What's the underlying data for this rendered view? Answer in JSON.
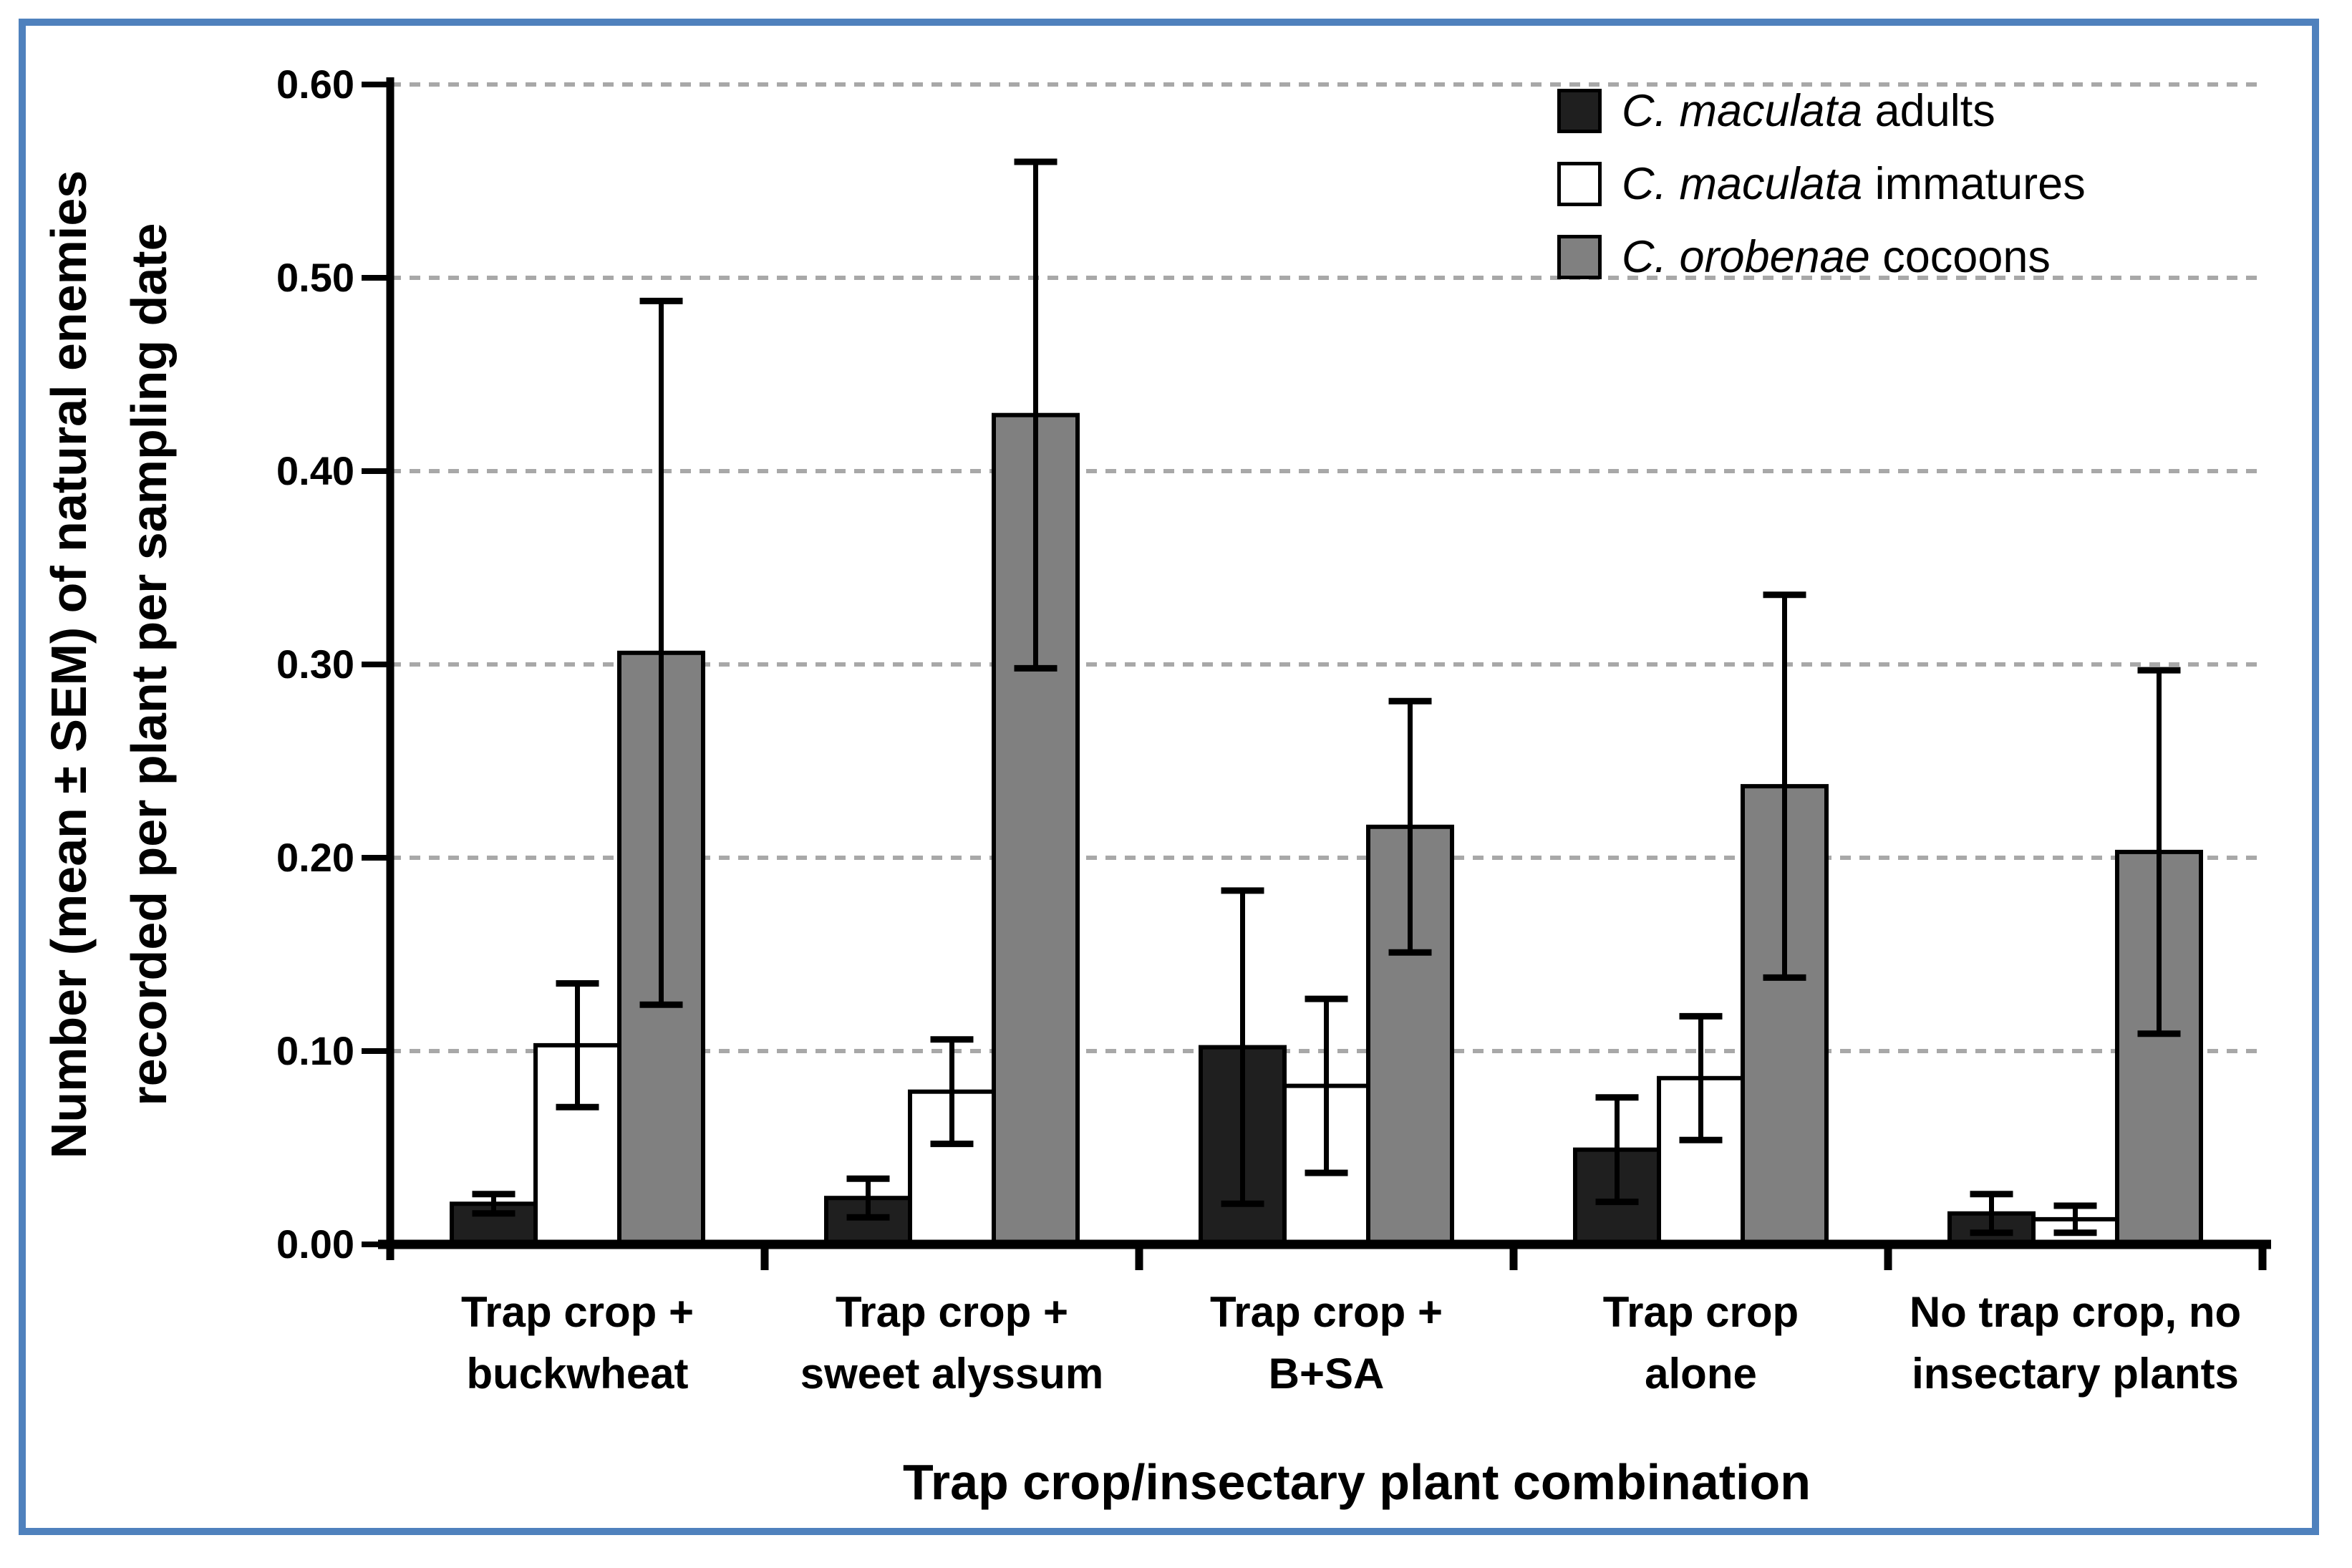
{
  "figure": {
    "border_color": "#4f81bd",
    "background": "#ffffff",
    "axis_color": "#000000",
    "gridline_color": "#a8a8a8"
  },
  "chart_data": {
    "type": "bar",
    "title": "",
    "xlabel": "Trap crop/insectary plant combination",
    "ylabel_line1": "Number (mean ± SEM) of natural enemies",
    "ylabel_line2": "recorded per plant per sampling date",
    "categories": [
      [
        "Trap crop +",
        "buckwheat"
      ],
      [
        "Trap crop +",
        "sweet alyssum"
      ],
      [
        "Trap crop +",
        "B+SA"
      ],
      [
        "Trap crop",
        "alone"
      ],
      [
        "No trap crop, no",
        "insectary plants"
      ]
    ],
    "series": [
      {
        "name_italic": "C. maculata",
        "name_rest": " adults",
        "fill": "#1f1f1f",
        "stroke": "#000000",
        "values": [
          0.021,
          0.024,
          0.102,
          0.049,
          0.016
        ],
        "sem": [
          0.005,
          0.01,
          0.081,
          0.027,
          0.01
        ]
      },
      {
        "name_italic": "C. maculata",
        "name_rest": " immatures",
        "fill": "#ffffff",
        "stroke": "#000000",
        "values": [
          0.103,
          0.079,
          0.082,
          0.086,
          0.013
        ],
        "sem": [
          0.032,
          0.027,
          0.045,
          0.032,
          0.007
        ]
      },
      {
        "name_italic": "C. orobenae",
        "name_rest": " cocoons",
        "fill": "#808080",
        "stroke": "#000000",
        "values": [
          0.306,
          0.429,
          0.216,
          0.237,
          0.203
        ],
        "sem": [
          0.182,
          0.131,
          0.065,
          0.099,
          0.094
        ]
      }
    ],
    "y_axis": {
      "min": 0.0,
      "max": 0.6,
      "step": 0.1,
      "tick_labels": [
        "0.00",
        "0.10",
        "0.20",
        "0.30",
        "0.40",
        "0.50",
        "0.60"
      ]
    },
    "grid": "horizontal dashed",
    "legend_position": "inside top-right",
    "error_bars": "mean ± SEM with caps"
  }
}
